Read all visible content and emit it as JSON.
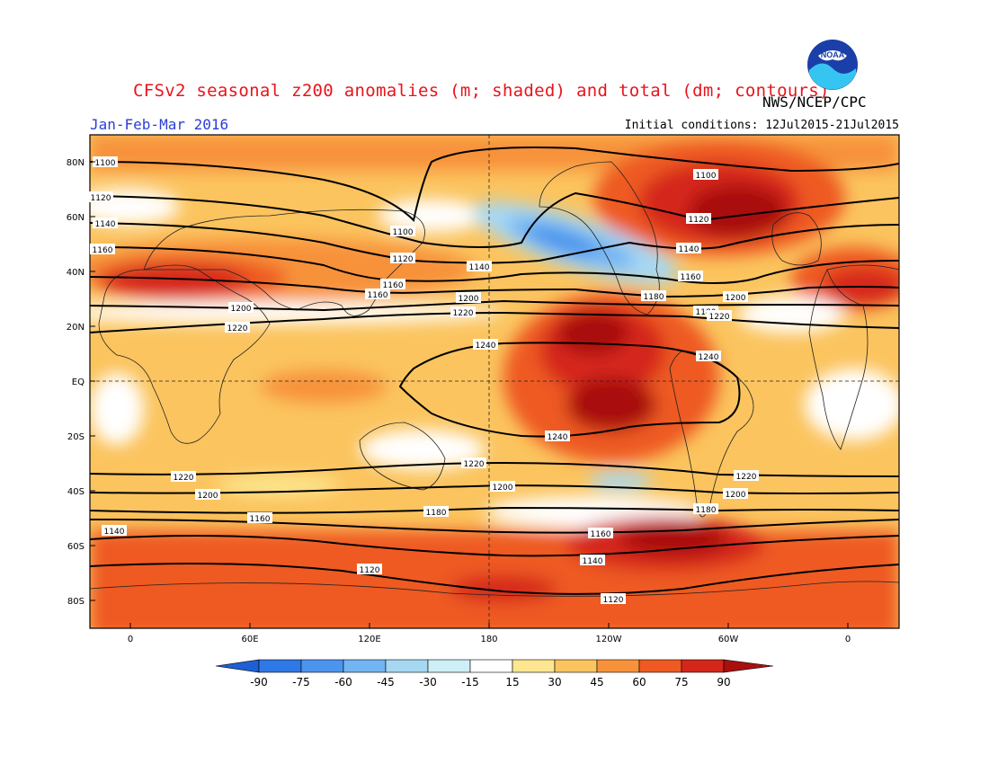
{
  "title": "CFSv2 seasonal z200 anomalies (m; shaded) and total (dm; contours)",
  "organization": "NWS/NCEP/CPC",
  "logo_text": "NOAA",
  "period": "Jan-Feb-Mar 2016",
  "initial_conditions": "Initial conditions: 12Jul2015-21Jul2015",
  "lat_labels": [
    "80N",
    "60N",
    "40N",
    "20N",
    "EQ",
    "20S",
    "40S",
    "60S",
    "80S"
  ],
  "lon_labels": [
    "0",
    "60E",
    "120E",
    "180",
    "120W",
    "60W",
    "0"
  ],
  "colorbar": {
    "labels": [
      "-90",
      "-75",
      "-60",
      "-45",
      "-30",
      "-15",
      "15",
      "30",
      "45",
      "60",
      "75",
      "90"
    ],
    "colors": [
      "#1e5fd4",
      "#2f79e6",
      "#4b95ee",
      "#73b4f2",
      "#a6d8f4",
      "#cdeff5",
      "#ffffff",
      "#fde68f",
      "#fbc45e",
      "#f7923a",
      "#ee5a22",
      "#d5261a",
      "#a9100d"
    ]
  },
  "contour_labels": [
    {
      "text": "1100"
    },
    {
      "text": "1100"
    },
    {
      "text": "1100"
    },
    {
      "text": "1120"
    },
    {
      "text": "1120"
    },
    {
      "text": "1120"
    },
    {
      "text": "1140"
    },
    {
      "text": "1140"
    },
    {
      "text": "1140"
    },
    {
      "text": "1160"
    },
    {
      "text": "1160"
    },
    {
      "text": "1160"
    },
    {
      "text": "1160"
    },
    {
      "text": "1180"
    },
    {
      "text": "1180"
    },
    {
      "text": "1200"
    },
    {
      "text": "1200"
    },
    {
      "text": "1200"
    },
    {
      "text": "1220"
    },
    {
      "text": "1220"
    },
    {
      "text": "1220"
    },
    {
      "text": "1240"
    },
    {
      "text": "1240"
    },
    {
      "text": "1240"
    },
    {
      "text": "1220"
    },
    {
      "text": "1220"
    },
    {
      "text": "1220"
    },
    {
      "text": "1200"
    },
    {
      "text": "1200"
    },
    {
      "text": "1200"
    },
    {
      "text": "1180"
    },
    {
      "text": "1180"
    },
    {
      "text": "1160"
    },
    {
      "text": "1160"
    },
    {
      "text": "1140"
    },
    {
      "text": "1140"
    },
    {
      "text": "1120"
    },
    {
      "text": "1120"
    }
  ]
}
